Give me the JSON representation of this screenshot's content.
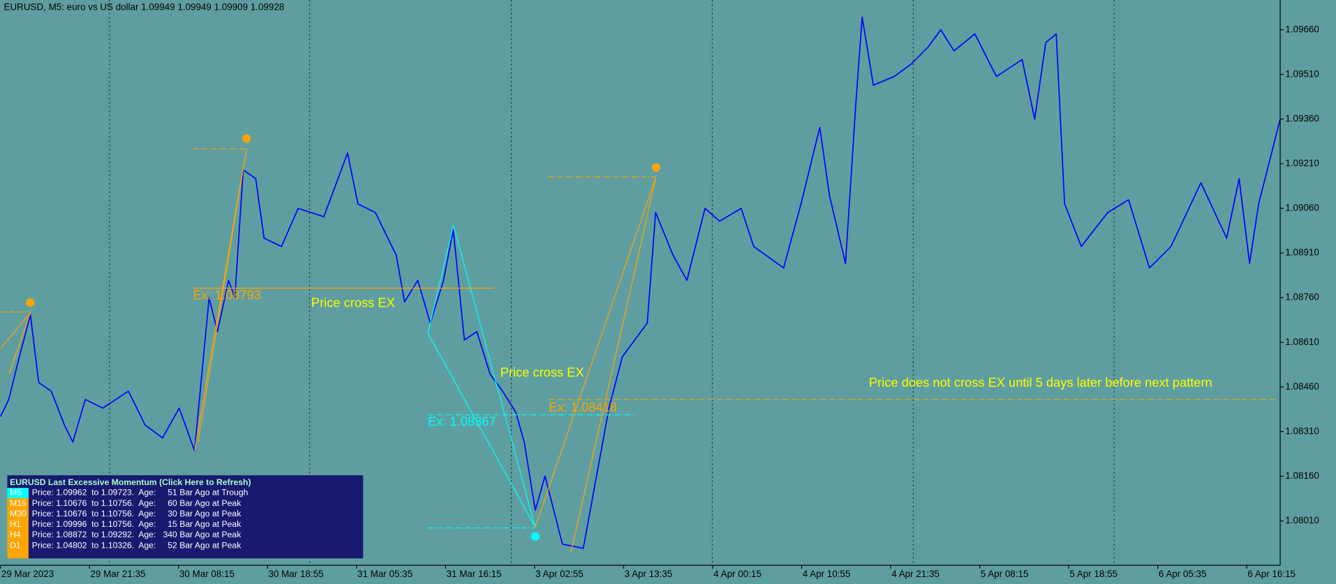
{
  "chart_data": {
    "type": "line",
    "title": "EURUSD, M5:  euro vs US dollar  1.09949 1.09949 1.09909 1.09928",
    "color": "#0000ff",
    "x": [
      0,
      12,
      24,
      43,
      55,
      73,
      92,
      104,
      122,
      147,
      184,
      208,
      233,
      257,
      279,
      300,
      312,
      328,
      337,
      349,
      367,
      379,
      404,
      428,
      465,
      499,
      514,
      539,
      569,
      581,
      600,
      618,
      637,
      651,
      667,
      685,
      704,
      722,
      741,
      753,
      769,
      783,
      808,
      838,
      857,
      875,
      894,
      930,
      942,
      967,
      987,
      1013,
      1034,
      1065,
      1083,
      1126,
      1151,
      1178,
      1192,
      1215,
      1230,
      1239,
      1255,
      1285,
      1310,
      1334,
      1352,
      1371,
      1401,
      1432,
      1469,
      1487,
      1503,
      1518,
      1530,
      1554,
      1592,
      1622,
      1652,
      1683,
      1726,
      1763,
      1781,
      1796,
      1809,
      1840
    ],
    "values": [
      1.08361,
      1.08418,
      1.08532,
      1.08703,
      1.08475,
      1.08446,
      1.08332,
      1.08275,
      1.08418,
      1.08389,
      1.08446,
      1.08332,
      1.08289,
      1.08389,
      1.08246,
      1.0876,
      1.08646,
      1.08818,
      1.0876,
      1.09189,
      1.0916,
      1.0896,
      1.08932,
      1.0906,
      1.09032,
      1.09246,
      1.09075,
      1.09046,
      1.08903,
      1.08746,
      1.08818,
      1.08675,
      1.08818,
      1.08989,
      1.08618,
      1.08646,
      1.08503,
      1.08446,
      1.08375,
      1.08275,
      1.08046,
      1.08161,
      1.07932,
      1.07918,
      1.08161,
      1.08389,
      1.08561,
      1.08675,
      1.09046,
      1.08903,
      1.08818,
      1.0906,
      1.09017,
      1.0906,
      1.08932,
      1.0886,
      1.09075,
      1.09332,
      1.09103,
      1.08875,
      1.09417,
      1.09703,
      1.09474,
      1.09503,
      1.09546,
      1.09603,
      1.0966,
      1.09589,
      1.09646,
      1.09503,
      1.0956,
      1.0936,
      1.09617,
      1.09646,
      1.09075,
      1.08932,
      1.09046,
      1.09089,
      1.0886,
      1.08932,
      1.09146,
      1.0896,
      1.0916,
      1.08875,
      1.09075,
      1.0936
    ],
    "xlim": [
      0,
      1840
    ],
    "xticks": [
      {
        "value": 0,
        "label": "29 Mar 2023"
      },
      {
        "value": 128,
        "label": "29 Mar 21:35"
      },
      {
        "value": 256,
        "label": "30 Mar 08:15"
      },
      {
        "value": 384,
        "label": "30 Mar 18:55"
      },
      {
        "value": 512,
        "label": "31 Mar 05:35"
      },
      {
        "value": 640,
        "label": "31 Mar 16:15"
      },
      {
        "value": 768,
        "label": "3 Apr 02:55"
      },
      {
        "value": 896,
        "label": "3 Apr 13:35"
      },
      {
        "value": 1024,
        "label": "4 Apr 00:15"
      },
      {
        "value": 1152,
        "label": "4 Apr 10:55"
      },
      {
        "value": 1280,
        "label": "4 Apr 21:35"
      },
      {
        "value": 1408,
        "label": "5 Apr 08:15"
      },
      {
        "value": 1536,
        "label": "5 Apr 18:55"
      },
      {
        "value": 1664,
        "label": "6 Apr 05:35"
      },
      {
        "value": 1792,
        "label": "6 Apr 16:15"
      }
    ],
    "ylim": [
      1.07861,
      1.0976
    ],
    "yticks": [
      {
        "value": 1.0966,
        "label": "1.09660"
      },
      {
        "value": 1.0951,
        "label": "1.09510"
      },
      {
        "value": 1.0936,
        "label": "1.09360"
      },
      {
        "value": 1.0921,
        "label": "1.09210"
      },
      {
        "value": 1.0906,
        "label": "1.09060"
      },
      {
        "value": 1.0891,
        "label": "1.08910"
      },
      {
        "value": 1.0876,
        "label": "1.08760"
      },
      {
        "value": 1.0861,
        "label": "1.08610"
      },
      {
        "value": 1.0846,
        "label": "1.08460"
      },
      {
        "value": 1.0831,
        "label": "1.08310"
      },
      {
        "value": 1.0816,
        "label": "1.08160"
      },
      {
        "value": 1.0801,
        "label": "1.08010"
      }
    ],
    "annotations": [
      "Ex: 1.08793",
      "Price cross EX",
      "Price cross EX",
      "Ex: 1.08367",
      "Ex: 1.08418",
      "Price does not cross EX until 5 days later before next pattern"
    ]
  },
  "panel": {
    "title": "EURUSD Last Excessive Momentum (Click Here to Refresh)",
    "rows": [
      {
        "tf": "M5",
        "text": "Price: 1.09962  to 1.09723.  Age:     51 Bar Ago at Trough"
      },
      {
        "tf": "M15",
        "text": "Price: 1.10676  to 1.10756.  Age:     60 Bar Ago at Peak"
      },
      {
        "tf": "M30",
        "text": "Price: 1.10676  to 1.10756.  Age:     30 Bar Ago at Peak"
      },
      {
        "tf": "H1",
        "text": "Price: 1.09996  to 1.10756.  Age:     15 Bar Ago at Peak"
      },
      {
        "tf": "H4",
        "text": "Price: 1.08872  to 1.09292.  Age:   340 Bar Ago at Peak"
      },
      {
        "tf": "D1",
        "text": "Price: 1.04802  to 1.10326.  Age:     52 Bar Ago at Peak"
      }
    ]
  }
}
